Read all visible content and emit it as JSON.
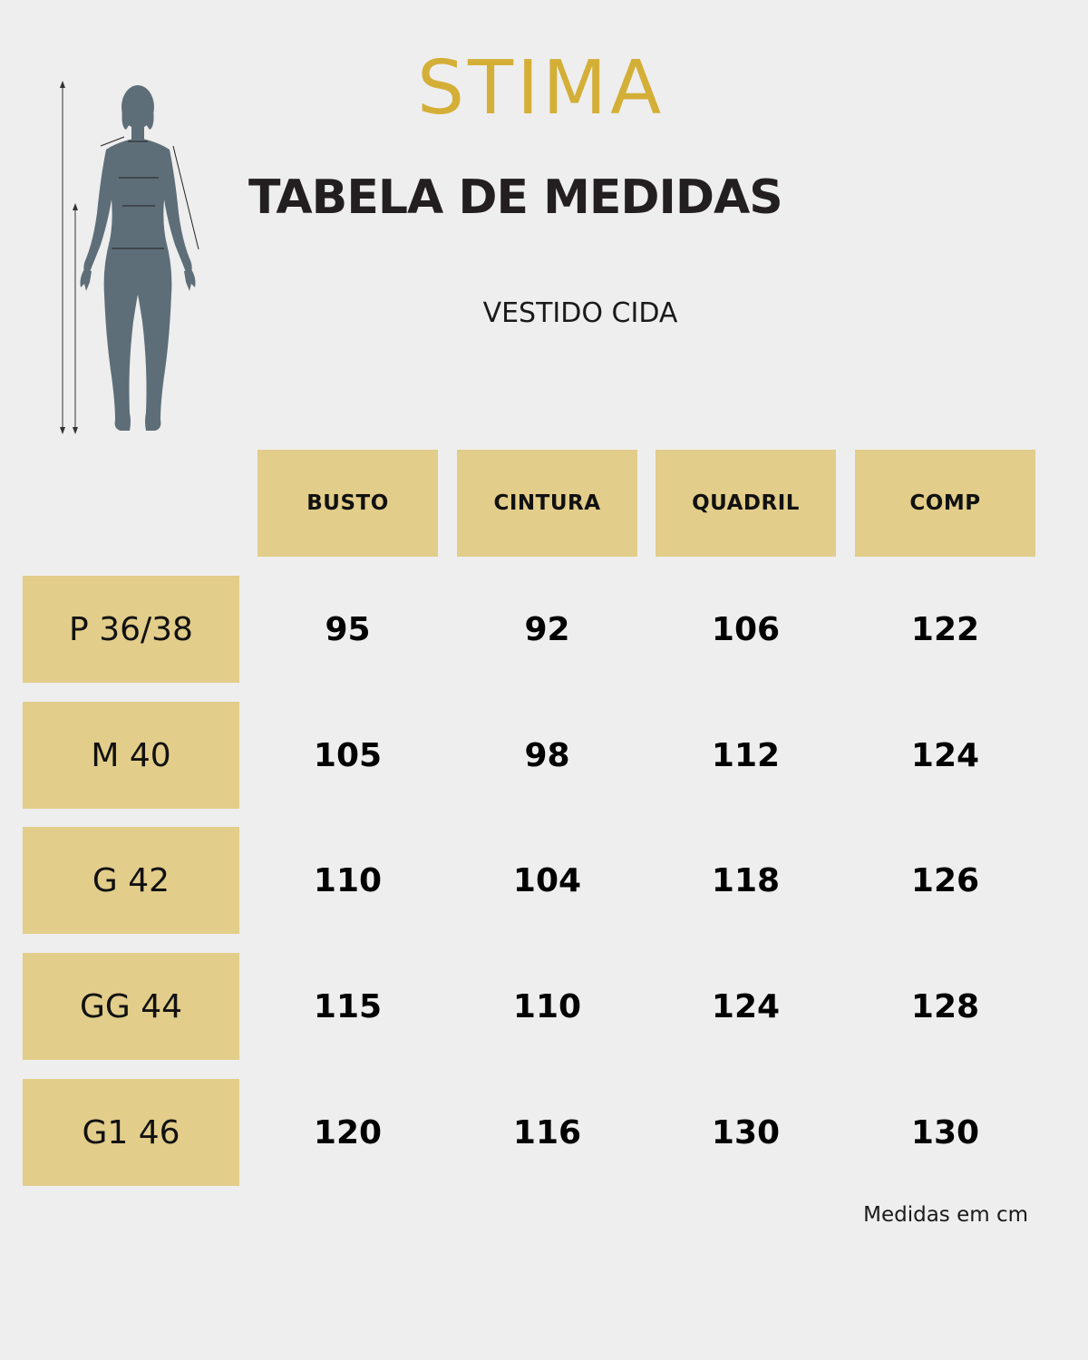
{
  "brand": {
    "logo_text": "STIMA",
    "color": "#d4af37"
  },
  "title": "TABELA DE MEDIDAS",
  "subtitle": "VESTIDO CIDA",
  "illustration": {
    "icon": "female-body-measurement-icon",
    "color": "#5e6e78"
  },
  "table": {
    "header_color": "#e2cd8a",
    "columns": [
      "BUSTO",
      "CINTURA",
      "QUADRIL",
      "COMP"
    ],
    "rows": [
      {
        "size": "P 36/38",
        "values": [
          "95",
          "92",
          "106",
          "122"
        ]
      },
      {
        "size": "M 40",
        "values": [
          "105",
          "98",
          "112",
          "124"
        ]
      },
      {
        "size": "G 42",
        "values": [
          "110",
          "104",
          "118",
          "126"
        ]
      },
      {
        "size": "GG 44",
        "values": [
          "115",
          "110",
          "124",
          "128"
        ]
      },
      {
        "size": "G1 46",
        "values": [
          "120",
          "116",
          "130",
          "130"
        ]
      }
    ]
  },
  "note": "Medidas em cm"
}
